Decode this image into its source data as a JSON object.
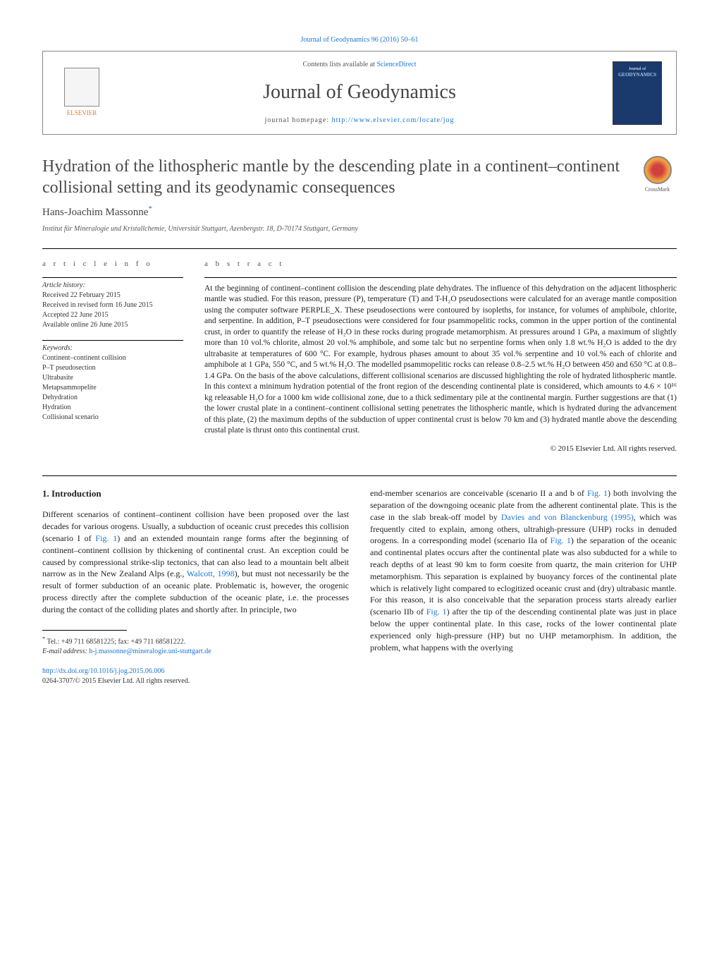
{
  "header": {
    "journal_ref_link": "Journal of Geodynamics 96 (2016) 50–61",
    "contents_prefix": "Contents lists available at ",
    "contents_link": "ScienceDirect",
    "journal_name": "Journal of Geodynamics",
    "homepage_label": "journal homepage: ",
    "homepage_url": "http://www.elsevier.com/locate/jog",
    "publisher_logo_text": "ELSEVIER",
    "cover_text": "GEODYNAMICS"
  },
  "article": {
    "title": "Hydration of the lithospheric mantle by the descending plate in a continent–continent collisional setting and its geodynamic consequences",
    "crossmark_label": "CrossMark",
    "author_name": "Hans-Joachim Massonne",
    "author_marker": "*",
    "affiliation": "Institut für Mineralogie und Kristallchemie, Universität Stuttgart, Azenbergstr. 18, D-70174 Stuttgart, Germany"
  },
  "info": {
    "label": "a r t i c l e   i n f o",
    "history_label": "Article history:",
    "received": "Received 22 February 2015",
    "revised": "Received in revised form 16 June 2015",
    "accepted": "Accepted 22 June 2015",
    "online": "Available online 26 June 2015",
    "keywords_label": "Keywords:",
    "keywords": [
      "Continent–continent collision",
      "P–T pseudosection",
      "Ultrabasite",
      "Metapsammopelite",
      "Dehydration",
      "Hydration",
      "Collisional scenario"
    ]
  },
  "abstract": {
    "label": "a b s t r a c t",
    "text": "At the beginning of continent–continent collision the descending plate dehydrates. The influence of this dehydration on the adjacent lithospheric mantle was studied. For this reason, pressure (P), temperature (T) and T-H₂O pseudosections were calculated for an average mantle composition using the computer software PERPLE_X. These pseudosections were contoured by isopleths, for instance, for volumes of amphibole, chlorite, and serpentine. In addition, P–T pseudosections were considered for four psammopelitic rocks, common in the upper portion of the continental crust, in order to quantify the release of H₂O in these rocks during prograde metamorphism. At pressures around 1 GPa, a maximum of slightly more than 10 vol.% chlorite, almost 20 vol.% amphibole, and some talc but no serpentine forms when only 1.8 wt.% H₂O is added to the dry ultrabasite at temperatures of 600 °C. For example, hydrous phases amount to about 35 vol.% serpentine and 10 vol.% each of chlorite and amphibole at 1 GPa, 550 °C, and 5 wt.% H₂O. The modelled psammopelitic rocks can release 0.8–2.5 wt.% H₂O between 450 and 650 °C at 0.8–1.4 GPa. On the basis of the above calculations, different collisional scenarios are discussed highlighting the role of hydrated lithospheric mantle. In this context a minimum hydration potential of the front region of the descending continental plate is considered, which amounts to 4.6 × 10¹⁶ kg releasable H₂O for a 1000 km wide collisional zone, due to a thick sedimentary pile at the continental margin. Further suggestions are that (1) the lower crustal plate in a continent–continent collisional setting penetrates the lithospheric mantle, which is hydrated during the advancement of this plate, (2) the maximum depths of the subduction of upper continental crust is below 70 km and (3) hydrated mantle above the descending crustal plate is thrust onto this continental crust.",
    "copyright": "© 2015 Elsevier Ltd. All rights reserved."
  },
  "body": {
    "section_heading": "1. Introduction",
    "col1": "Different scenarios of continent–continent collision have been proposed over the last decades for various orogens. Usually, a subduction of oceanic crust precedes this collision (scenario I of Fig. 1) and an extended mountain range forms after the beginning of continent–continent collision by thickening of continental crust. An exception could be caused by compressional strike-slip tectonics, that can also lead to a mountain belt albeit narrow as in the New Zealand Alps (e.g., Walcott, 1998), but must not necessarily be the result of former subduction of an oceanic plate. Problematic is, however, the orogenic process directly after the complete subduction of the oceanic plate, i.e. the processes during the contact of the colliding plates and shortly after. In principle, two",
    "col2": "end-member scenarios are conceivable (scenario II a and b of Fig. 1) both involving the separation of the downgoing oceanic plate from the adherent continental plate. This is the case in the slab break-off model by Davies and von Blanckenburg (1995), which was frequently cited to explain, among others, ultrahigh-pressure (UHP) rocks in denuded orogens. In a corresponding model (scenario IIa of Fig. 1) the separation of the oceanic and continental plates occurs after the continental plate was also subducted for a while to reach depths of at least 90 km to form coesite from quartz, the main criterion for UHP metamorphism. This separation is explained by buoyancy forces of the continental plate which is relatively light compared to eclogitized oceanic crust and (dry) ultrabasic mantle. For this reason, it is also conceivable that the separation process starts already earlier (scenario IIb of Fig. 1) after the tip of the descending continental plate was just in place below the upper continental plate. In this case, rocks of the lower continental plate experienced only high-pressure (HP) but no UHP metamorphism. In addition, the problem, what happens with the overlying"
  },
  "footer": {
    "corr_marker": "*",
    "tel_label": "Tel.: +49 711 68581225; fax: +49 711 68581222.",
    "email_label": "E-mail address: ",
    "email": "h-j.massonne@mineralogie.uni-stuttgart.de",
    "doi_url": "http://dx.doi.org/10.1016/j.jog.2015.06.006",
    "issn_rights": "0264-3707/© 2015 Elsevier Ltd. All rights reserved."
  },
  "colors": {
    "link": "#1976d2",
    "publisher": "#e87722",
    "cover_bg": "#1a3a6e",
    "heading": "#4a4a4a"
  }
}
